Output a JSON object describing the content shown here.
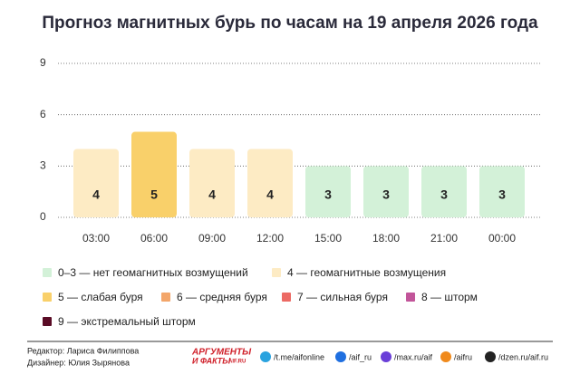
{
  "chart_data": {
    "type": "bar",
    "title": "Прогноз магнитных бурь по часам на 19 апреля 2026 года",
    "categories": [
      "03:00",
      "06:00",
      "09:00",
      "12:00",
      "15:00",
      "18:00",
      "21:00",
      "00:00"
    ],
    "values": [
      4,
      5,
      4,
      4,
      3,
      3,
      3,
      3
    ],
    "colors": [
      "#fdebc4",
      "#f9d06a",
      "#fdebc4",
      "#fdebc4",
      "#d3f1d8",
      "#d3f1d8",
      "#d3f1d8",
      "#d3f1d8"
    ],
    "ylim": [
      0,
      9
    ],
    "yticks": [
      0,
      3,
      6,
      9
    ],
    "grid": true,
    "legend": [
      {
        "label": "0–3 — нет геомагнитных возмущений",
        "color": "#d3f1d8"
      },
      {
        "label": "4 — геомагнитные возмущения",
        "color": "#fdebc4"
      },
      {
        "label": "5 — слабая буря",
        "color": "#f9d06a"
      },
      {
        "label": "6 — средняя буря",
        "color": "#f3a66a"
      },
      {
        "label": "7 — сильная буря",
        "color": "#ec6a64"
      },
      {
        "label": "8 — шторм",
        "color": "#c2559a"
      },
      {
        "label": "9 — экстремальный шторм",
        "color": "#5a0c26"
      }
    ]
  },
  "footer": {
    "editor": "Редактор: Лариса Филиппова",
    "designer": "Дизайнер: Юлия Зырянова",
    "logo_top": "АРГУМЕНТЫ",
    "logo_bottom": "И ФАКТЫ",
    "logo_site": "AIF.RU",
    "links": [
      "/t.me/aifonline",
      "/aif_ru",
      "/max.ru/aif",
      "/aifru",
      "/dzen.ru/aif.ru"
    ]
  }
}
